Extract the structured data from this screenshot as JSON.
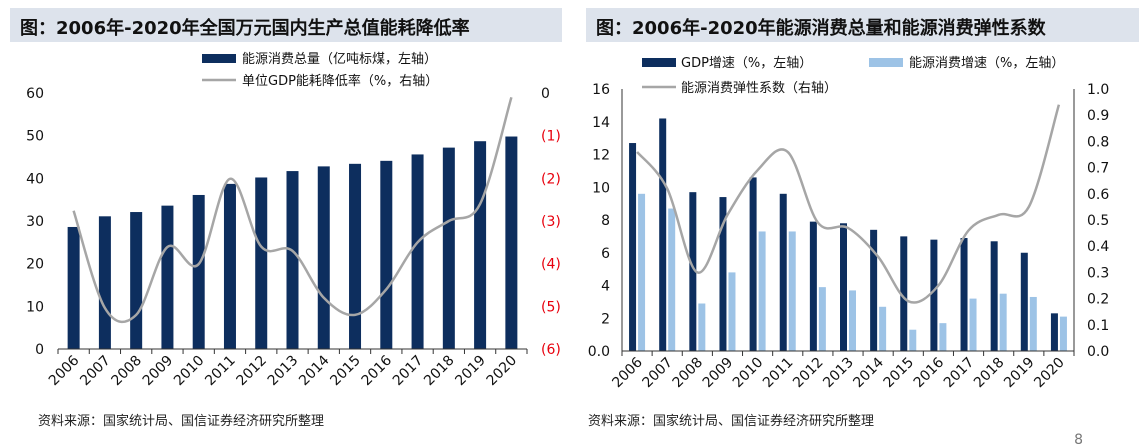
{
  "page_number": "8",
  "chart_data": [
    {
      "type": "bar+line",
      "title": "图：2006年-2020年全国万元国内生产总值能耗降低率",
      "source": "资料来源：国家统计局、国信证券经济研究所整理",
      "categories": [
        "2006",
        "2007",
        "2008",
        "2009",
        "2010",
        "2011",
        "2012",
        "2013",
        "2014",
        "2015",
        "2016",
        "2017",
        "2018",
        "2019",
        "2020"
      ],
      "series": [
        {
          "name": "能源消费总量（亿吨标煤，左轴）",
          "kind": "bar",
          "axis": "left",
          "values": [
            28.6,
            31.1,
            32.1,
            33.6,
            36.1,
            38.7,
            40.2,
            41.7,
            42.8,
            43.4,
            44.1,
            45.6,
            47.2,
            48.7,
            49.8
          ]
        },
        {
          "name": "单位GDP能耗降低率（%，右轴）",
          "kind": "line",
          "axis": "right",
          "values": [
            -2.76,
            -5.04,
            -5.2,
            -3.61,
            -4.01,
            -2.01,
            -3.6,
            -3.7,
            -4.8,
            -5.2,
            -4.6,
            -3.5,
            -3.0,
            -2.6,
            -0.1
          ]
        }
      ],
      "left_axis": {
        "min": 0,
        "max": 60,
        "ticks": [
          "0",
          "10",
          "20",
          "30",
          "40",
          "50",
          "60"
        ]
      },
      "right_axis": {
        "min": -6,
        "max": 0,
        "ticks": [
          "(6)",
          "(5)",
          "(4)",
          "(3)",
          "(2)",
          "(1)",
          "0"
        ]
      },
      "colors": {
        "bar": "#0d2e5e",
        "line": "#a6a6a6",
        "right_tick": "#e8000d"
      },
      "legend_position": "top"
    },
    {
      "type": "bar+line",
      "title": "图：2006年-2020年能源消费总量和能源消费弹性系数",
      "source": "资料来源：国家统计局、国信证券经济研究所整理",
      "categories": [
        "2006",
        "2007",
        "2008",
        "2009",
        "2010",
        "2011",
        "2012",
        "2013",
        "2014",
        "2015",
        "2016",
        "2017",
        "2018",
        "2019",
        "2020"
      ],
      "series": [
        {
          "name": "GDP增速（%，左轴）",
          "kind": "bar",
          "axis": "left",
          "values": [
            12.7,
            14.2,
            9.7,
            9.4,
            10.6,
            9.6,
            7.9,
            7.8,
            7.4,
            7.0,
            6.8,
            6.9,
            6.7,
            6.0,
            2.3
          ]
        },
        {
          "name": "能源消费增速（%，左轴）",
          "kind": "bar",
          "axis": "left",
          "values": [
            9.6,
            8.7,
            2.9,
            4.8,
            7.3,
            7.3,
            3.9,
            3.7,
            2.7,
            1.3,
            1.7,
            3.2,
            3.5,
            3.3,
            2.1
          ]
        },
        {
          "name": "能源消费弹性系数（右轴）",
          "kind": "line",
          "axis": "right",
          "values": [
            0.76,
            0.62,
            0.3,
            0.52,
            0.69,
            0.76,
            0.49,
            0.47,
            0.36,
            0.19,
            0.25,
            0.46,
            0.52,
            0.55,
            0.94
          ]
        }
      ],
      "left_axis": {
        "min": 0,
        "max": 16,
        "ticks": [
          "0.0",
          "2",
          "4",
          "6",
          "8",
          "10",
          "12",
          "14",
          "16"
        ]
      },
      "right_axis": {
        "min": 0,
        "max": 1,
        "ticks": [
          "0.0",
          "0.1",
          "0.2",
          "0.3",
          "0.4",
          "0.5",
          "0.6",
          "0.7",
          "0.8",
          "0.9",
          "1.0"
        ]
      },
      "colors": {
        "bar1": "#0d2e5e",
        "bar2": "#9dc3e6",
        "line": "#a6a6a6"
      },
      "legend_position": "top"
    }
  ]
}
